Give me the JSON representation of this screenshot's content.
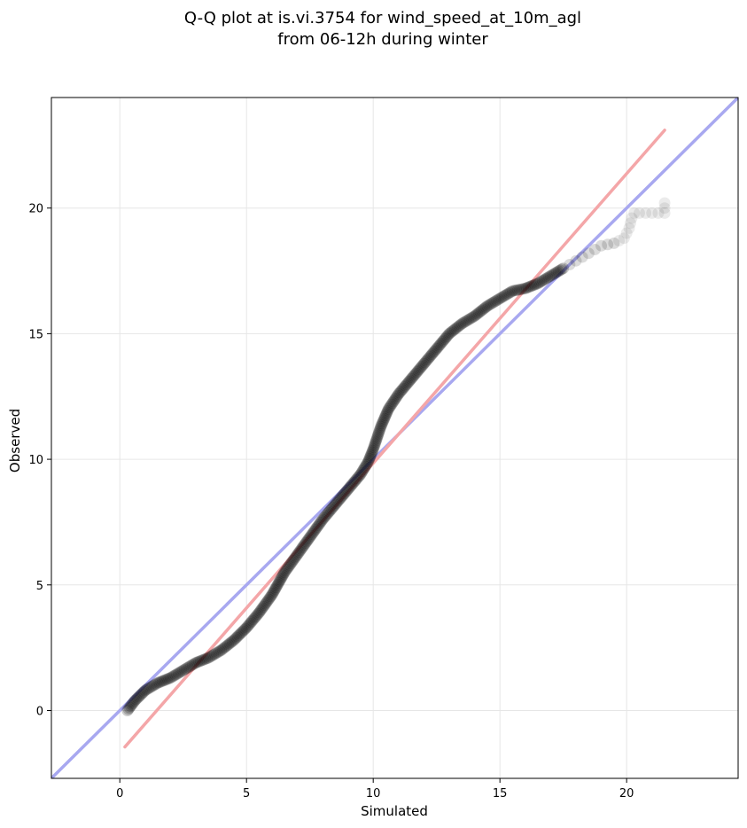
{
  "chart_data": {
    "type": "scatter",
    "title_line1": "Q-Q plot at is.vi.3754 for wind_speed_at_10m_agl",
    "title_line2": "from 06-12h during winter",
    "xlabel": "Simulated",
    "ylabel": "Observed",
    "xlim": [
      -2.7,
      24.4
    ],
    "ylim": [
      -2.7,
      24.4
    ],
    "xticks": [
      0,
      5,
      10,
      15,
      20
    ],
    "yticks": [
      0,
      5,
      10,
      15,
      20
    ],
    "grid": true,
    "quantile_curve": {
      "x": [
        0.3,
        0.6,
        1.0,
        1.5,
        2.0,
        2.5,
        3.0,
        3.5,
        4.0,
        4.5,
        5.0,
        5.5,
        6.0,
        6.5,
        7.0,
        7.5,
        8.0,
        8.5,
        9.0,
        9.5,
        9.8,
        10.0,
        10.3,
        10.6,
        11.0,
        11.5,
        12.0,
        12.5,
        13.0,
        13.5,
        14.0,
        14.5,
        15.0,
        15.5,
        16.0,
        16.5,
        17.0,
        17.5,
        18.0,
        18.5,
        19.0,
        19.5,
        19.9,
        20.1,
        20.2,
        20.3,
        20.5,
        21.5,
        21.5
      ],
      "y": [
        0.0,
        0.4,
        0.8,
        1.1,
        1.3,
        1.6,
        1.9,
        2.1,
        2.4,
        2.8,
        3.3,
        3.9,
        4.6,
        5.5,
        6.2,
        6.9,
        7.6,
        8.2,
        8.8,
        9.4,
        9.9,
        10.4,
        11.3,
        12.0,
        12.6,
        13.2,
        13.8,
        14.4,
        15.0,
        15.4,
        15.7,
        16.1,
        16.4,
        16.7,
        16.8,
        17.0,
        17.3,
        17.6,
        17.9,
        18.2,
        18.5,
        18.6,
        18.8,
        19.2,
        19.6,
        19.8,
        19.8,
        19.8,
        20.2
      ]
    },
    "reference_line": {
      "name": "",
      "color": "#a8a8f0",
      "points": [
        [
          -2.7,
          -2.7
        ],
        [
          24.4,
          24.4
        ]
      ]
    },
    "fit_line": {
      "name": "",
      "color": "#f4a6a8",
      "points": [
        [
          0.2,
          -1.45
        ],
        [
          21.5,
          23.1
        ]
      ]
    },
    "marker_color": "#000000"
  }
}
